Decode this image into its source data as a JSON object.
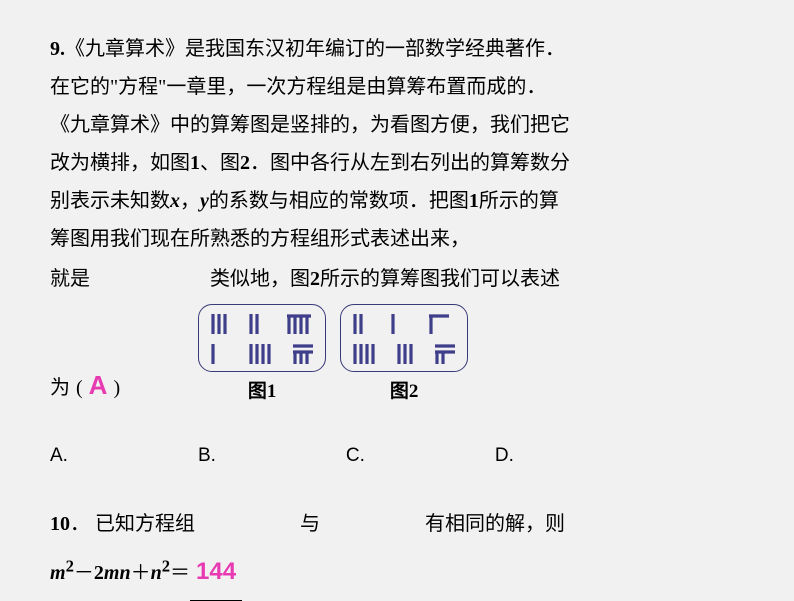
{
  "q9": {
    "number": "9.",
    "para1_a": "《九章算术》是我国东汉初年编订的一部数学经典著作．",
    "para1_b": "在它的\"方程\"一章里，一次方程组是由算筹布置而成的．",
    "para2_a": "《九章算术》中的算筹图是竖排的，为看图方便，我们把它",
    "para2_b": "改为横排，如图",
    "num1": "1",
    "comma": "、图",
    "num2": "2",
    "para2_c": "．图中各行从左到右列出的算筹数分",
    "para2_d": "别表示未知数",
    "x": "x",
    "comma2": "，",
    "y": "y",
    "para2_e": "的系数与相应的常数项．把图",
    "num1b": "1",
    "para2_f": "所示的算",
    "para2_g": "筹图用我们现在所熟悉的方程组形式表述出来，",
    "line_a": "就是",
    "line_b": "类似地，图",
    "num2b": "2",
    "line_c": "所示的算筹图我们可以表述",
    "wei": "为",
    "paren_open": "(",
    "answer": "A",
    "paren_close": ")",
    "caption1": "图1",
    "caption2": "图2"
  },
  "options": {
    "a": "A.",
    "b": "B.",
    "c": "C.",
    "d": "D."
  },
  "q10": {
    "number": "10",
    "dot": "．",
    "text_a": "已知方程组",
    "text_b": "与",
    "text_c": "有相同的解，则",
    "expr_a": "m",
    "expr_sup1": "2",
    "expr_b": "－",
    "expr_c": "2",
    "expr_d": "mn",
    "expr_e": "＋",
    "expr_f": "n",
    "expr_sup2": "2",
    "expr_g": "＝",
    "answer": "144"
  },
  "rods": {
    "fig1": {
      "row1": [
        "v3",
        "v2",
        "h1v4"
      ],
      "row2": [
        "v1",
        "v4",
        "h2v3"
      ]
    },
    "fig2": {
      "row1": [
        "v2",
        "v1",
        "h1v1"
      ],
      "row2": [
        "v4",
        "v3",
        "h2v2"
      ]
    }
  },
  "colors": {
    "background": "#f2f1f1",
    "text": "#000000",
    "answer": "#e83ab1",
    "rod": "#3e3e8a",
    "box_border": "#3a3a7a"
  }
}
